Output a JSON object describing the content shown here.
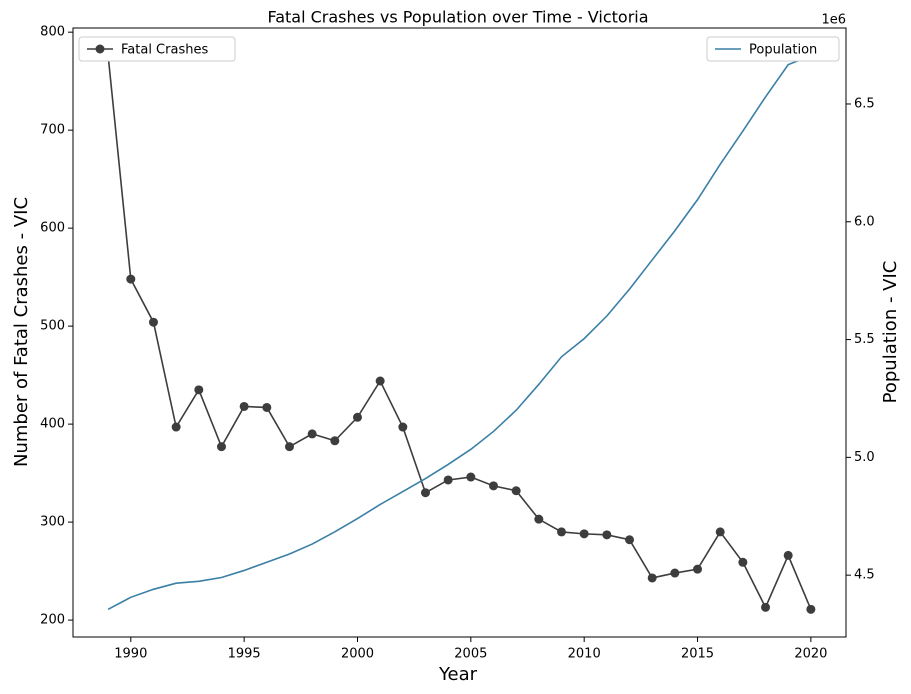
{
  "chart_data": {
    "type": "line",
    "title": "Fatal Crashes vs Population over Time - Victoria",
    "x_label": "Year",
    "y_label": "Number of Fatal Crashes - VIC",
    "y2_label": "Population - VIC",
    "y2_offset_label": "1e6",
    "x": [
      1989,
      1990,
      1991,
      1992,
      1993,
      1994,
      1995,
      1996,
      1997,
      1998,
      1999,
      2000,
      2001,
      2002,
      2003,
      2004,
      2005,
      2006,
      2007,
      2008,
      2009,
      2010,
      2011,
      2012,
      2013,
      2014,
      2015,
      2016,
      2017,
      2018,
      2019,
      2020
    ],
    "series": [
      {
        "name": "Fatal Crashes",
        "color": "#3d3d3d",
        "marker": "o",
        "axis": "y",
        "legend_loc": "upper left",
        "values": [
          776,
          548,
          504,
          397,
          435,
          377,
          418,
          417,
          377,
          390,
          383,
          407,
          444,
          397,
          330,
          343,
          346,
          337,
          332,
          303,
          290,
          288,
          287,
          282,
          243,
          248,
          252,
          290,
          259,
          213,
          266,
          211
        ]
      },
      {
        "name": "Population",
        "color": "#3a7fa6",
        "axis": "y2",
        "legend_loc": "upper right",
        "values": [
          4355000,
          4406000,
          4440000,
          4466000,
          4474000,
          4490000,
          4520000,
          4555000,
          4590000,
          4632000,
          4684000,
          4740000,
          4800000,
          4855000,
          4910000,
          4970000,
          5034000,
          5110000,
          5200000,
          5310000,
          5427000,
          5504000,
          5600000,
          5714000,
          5838000,
          5962000,
          6094000,
          6244000,
          6385000,
          6530000,
          6667000,
          6705000
        ]
      }
    ],
    "xlim": [
      1987.45,
      2021.55
    ],
    "xticks": [
      1990,
      1995,
      2000,
      2005,
      2010,
      2015,
      2020
    ],
    "ylim": [
      182.75,
      804.25
    ],
    "yticks": [
      200,
      300,
      400,
      500,
      600,
      700,
      800
    ],
    "y2lim": [
      4237500,
      6822500
    ],
    "y2ticks": [
      {
        "value": 4500000,
        "label": "4.5"
      },
      {
        "value": 5000000,
        "label": "5.0"
      },
      {
        "value": 5500000,
        "label": "5.5"
      },
      {
        "value": 6000000,
        "label": "6.0"
      },
      {
        "value": 6500000,
        "label": "6.5"
      }
    ],
    "grid": false
  }
}
